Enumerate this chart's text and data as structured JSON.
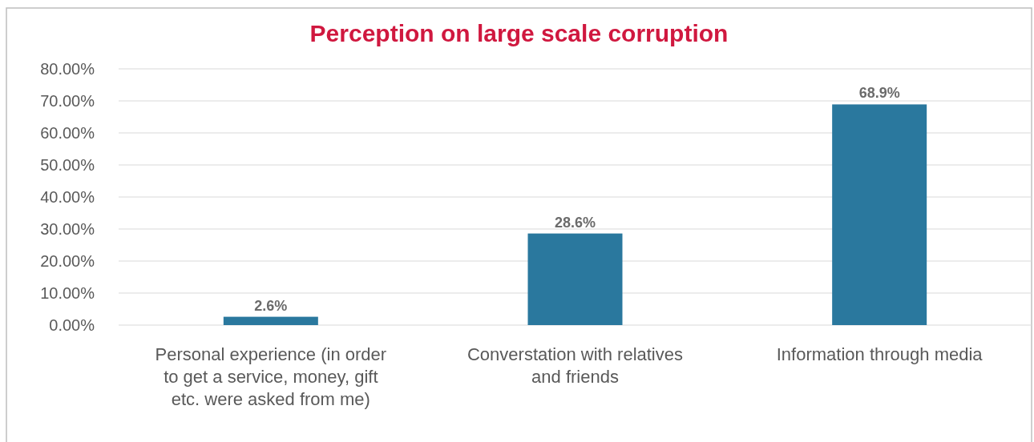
{
  "chart_data": {
    "type": "bar",
    "title": "Perception on large scale corruption",
    "categories": [
      "Personal experience (in order to get a service, money, gift etc. were asked from me)",
      "Converstation with relatives and friends",
      "Information through media"
    ],
    "values": [
      2.6,
      28.6,
      68.9
    ],
    "value_labels": [
      "2.6%",
      "28.6%",
      "68.9%"
    ],
    "color": "#2a789e",
    "ylim": [
      0,
      80
    ],
    "yticks": [
      {
        "value": 0,
        "label": "0.00%"
      },
      {
        "value": 10,
        "label": "10.00%"
      },
      {
        "value": 20,
        "label": "20.00%"
      },
      {
        "value": 30,
        "label": "30.00%"
      },
      {
        "value": 40,
        "label": "40.00%"
      },
      {
        "value": 50,
        "label": "50.00%"
      },
      {
        "value": 60,
        "label": "60.00%"
      },
      {
        "value": 70,
        "label": "70.00%"
      },
      {
        "value": 80,
        "label": "80.00%"
      }
    ],
    "grid": "y"
  }
}
